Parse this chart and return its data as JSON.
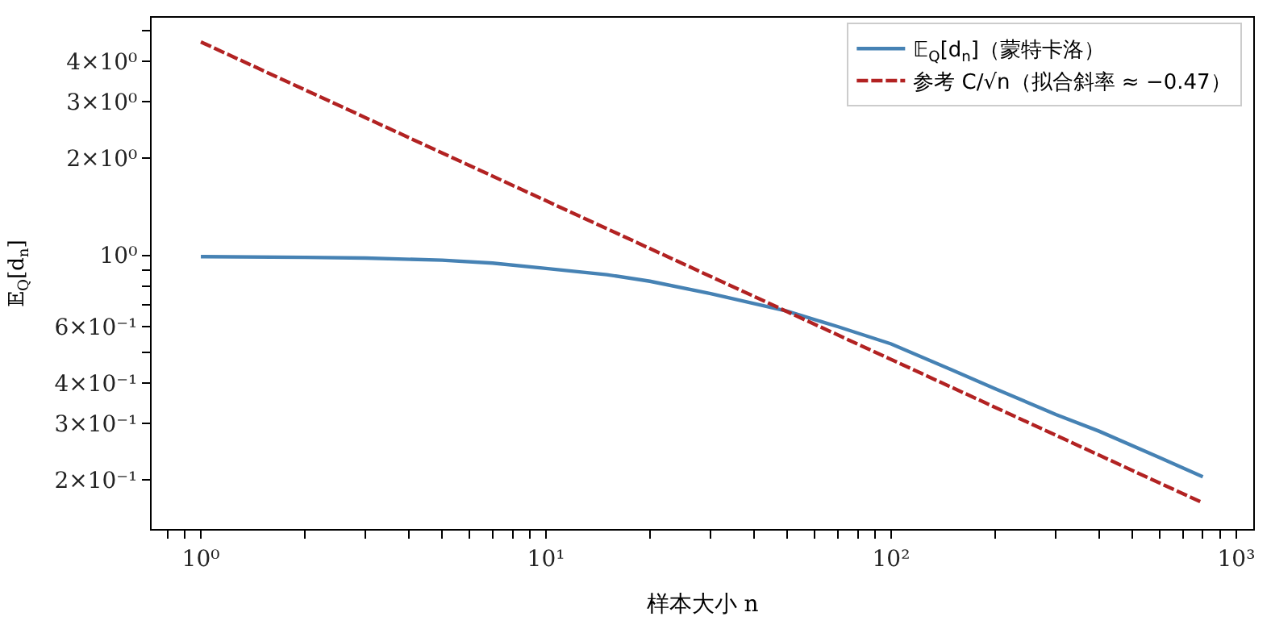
{
  "chart_data": {
    "type": "line",
    "xlabel": "样本大小 n",
    "ylabel": "𝔼$_{Q}$[d$_{n}$]",
    "log": "xy",
    "legend": "top right",
    "marker": "none",
    "xlim": [
      0.72,
      1120
    ],
    "ylim": [
      0.141,
      5.47
    ],
    "xticks": [
      {
        "value": 0.8,
        "label": null
      },
      {
        "value": 0.9,
        "label": null
      },
      {
        "value": 1,
        "label": "10⁰"
      },
      {
        "value": 2,
        "label": null
      },
      {
        "value": 3,
        "label": null
      },
      {
        "value": 4,
        "label": null
      },
      {
        "value": 5,
        "label": null
      },
      {
        "value": 6,
        "label": null
      },
      {
        "value": 7,
        "label": null
      },
      {
        "value": 8,
        "label": null
      },
      {
        "value": 9,
        "label": null
      },
      {
        "value": 10,
        "label": "10¹"
      },
      {
        "value": 20,
        "label": null
      },
      {
        "value": 30,
        "label": null
      },
      {
        "value": 40,
        "label": null
      },
      {
        "value": 50,
        "label": null
      },
      {
        "value": 60,
        "label": null
      },
      {
        "value": 70,
        "label": null
      },
      {
        "value": 80,
        "label": null
      },
      {
        "value": 90,
        "label": null
      },
      {
        "value": 100,
        "label": "10²"
      },
      {
        "value": 200,
        "label": null
      },
      {
        "value": 300,
        "label": null
      },
      {
        "value": 400,
        "label": null
      },
      {
        "value": 500,
        "label": null
      },
      {
        "value": 600,
        "label": null
      },
      {
        "value": 700,
        "label": null
      },
      {
        "value": 800,
        "label": null
      },
      {
        "value": 900,
        "label": null
      },
      {
        "value": 1000,
        "label": "10³"
      }
    ],
    "yticks": [
      {
        "value": 0.2,
        "label": "2×10⁻¹"
      },
      {
        "value": 0.3,
        "label": "3×10⁻¹"
      },
      {
        "value": 0.4,
        "label": "4×10⁻¹"
      },
      {
        "value": 0.5,
        "label": null
      },
      {
        "value": 0.6,
        "label": "6×10⁻¹"
      },
      {
        "value": 0.7,
        "label": null
      },
      {
        "value": 0.8,
        "label": null
      },
      {
        "value": 0.9,
        "label": null
      },
      {
        "value": 1,
        "label": "10⁰"
      },
      {
        "value": 2,
        "label": "2×10⁰"
      },
      {
        "value": 3,
        "label": "3×10⁰"
      },
      {
        "value": 4,
        "label": "4×10⁰"
      },
      {
        "value": 5,
        "label": null
      }
    ],
    "series": [
      {
        "name": "𝔼$_{Q}$[d$_{n}$]（蒙特卡洛）",
        "color": "#4682b4",
        "line_style": "solid",
        "x": [
          1,
          2,
          3,
          5,
          7,
          10,
          15,
          20,
          30,
          50,
          70,
          100,
          150,
          200,
          300,
          400,
          600,
          800
        ],
        "values": [
          0.99,
          0.985,
          0.98,
          0.965,
          0.945,
          0.91,
          0.87,
          0.83,
          0.76,
          0.67,
          0.6,
          0.53,
          0.44,
          0.385,
          0.32,
          0.284,
          0.235,
          0.205
        ]
      },
      {
        "name": "参考 C/√n（拟合斜率 ≈ −0.47）",
        "color": "#b22222",
        "line_style": "dashed",
        "x": [
          1,
          800
        ],
        "values": [
          4.6,
          0.17
        ]
      }
    ]
  }
}
